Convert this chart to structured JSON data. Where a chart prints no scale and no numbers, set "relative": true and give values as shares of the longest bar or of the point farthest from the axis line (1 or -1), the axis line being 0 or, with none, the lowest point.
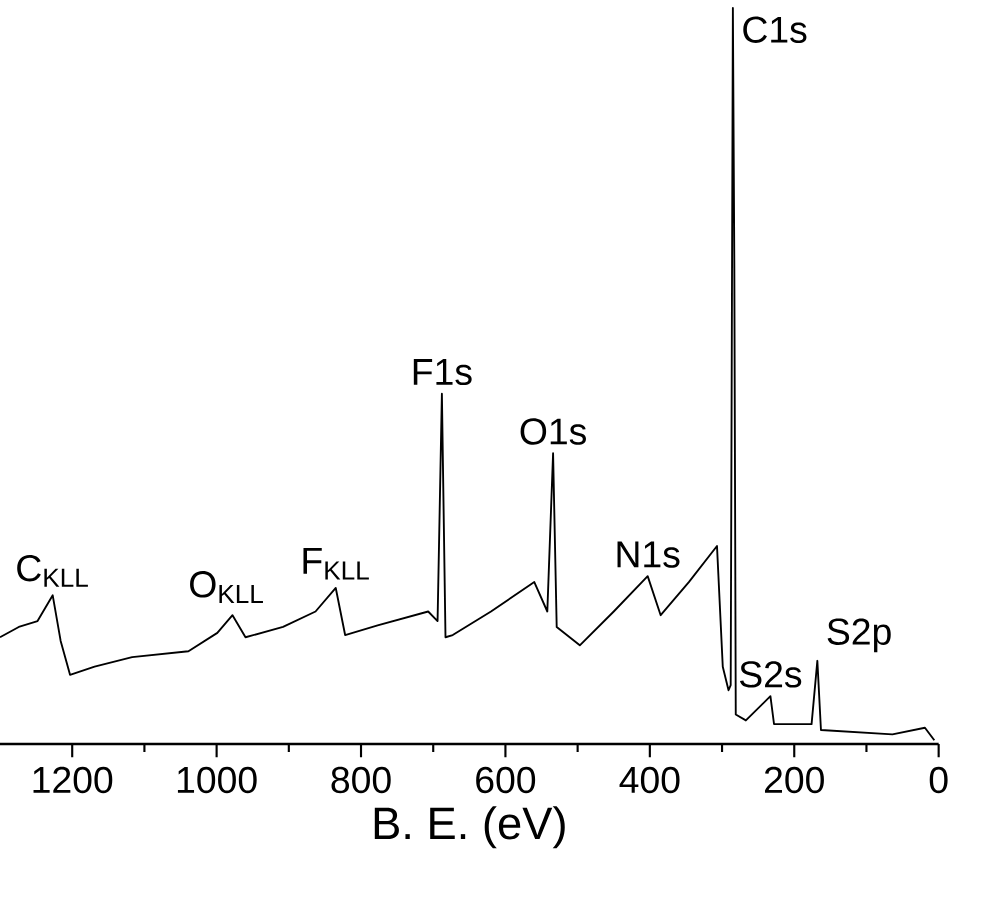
{
  "chart_data": {
    "type": "line",
    "xlabel": "B. E. (eV)",
    "relative": true,
    "xlim": [
      1300,
      0
    ],
    "xticks": [
      1200,
      1000,
      800,
      600,
      400,
      200,
      0
    ],
    "color": "#000000",
    "marker": "none",
    "line_style": "solid",
    "grid": false,
    "x": [
      1300,
      1274,
      1248,
      1227,
      1216,
      1203,
      1169,
      1117,
      1039,
      999,
      978,
      960,
      908,
      863,
      835,
      822,
      777,
      707,
      694,
      688,
      683,
      673,
      620,
      560,
      542,
      534,
      529,
      497,
      450,
      403,
      385,
      346,
      307,
      299,
      291,
      288,
      285,
      283,
      281,
      267,
      233,
      228,
      176,
      168,
      163,
      64,
      19,
      6
    ],
    "values": [
      0.145,
      0.159,
      0.167,
      0.202,
      0.14,
      0.094,
      0.105,
      0.118,
      0.126,
      0.151,
      0.175,
      0.145,
      0.159,
      0.18,
      0.212,
      0.148,
      0.161,
      0.18,
      0.167,
      0.476,
      0.145,
      0.148,
      0.18,
      0.22,
      0.18,
      0.395,
      0.159,
      0.134,
      0.18,
      0.228,
      0.175,
      0.22,
      0.269,
      0.105,
      0.073,
      0.08,
      1.0,
      0.65,
      0.04,
      0.032,
      0.065,
      0.027,
      0.027,
      0.113,
      0.019,
      0.013,
      0.022,
      0.005
    ],
    "annotations": [
      {
        "text": "C$_{KLL}$",
        "x": 1227,
        "y": 0.202
      },
      {
        "text": "O$_{KLL}$",
        "x": 986,
        "y": 0.18
      },
      {
        "text": "F$_{KLL}$",
        "x": 835,
        "y": 0.212
      },
      {
        "text": "F1s",
        "x": 688,
        "y": 0.476
      },
      {
        "text": "O1s",
        "x": 534,
        "y": 0.395
      },
      {
        "text": "N1s",
        "x": 403,
        "y": 0.228
      },
      {
        "text": "C1s",
        "x": 285,
        "y": 1.0
      },
      {
        "text": "S2s",
        "x": 233,
        "y": 0.065
      },
      {
        "text": "S2p",
        "x": 168,
        "y": 0.113
      }
    ]
  }
}
